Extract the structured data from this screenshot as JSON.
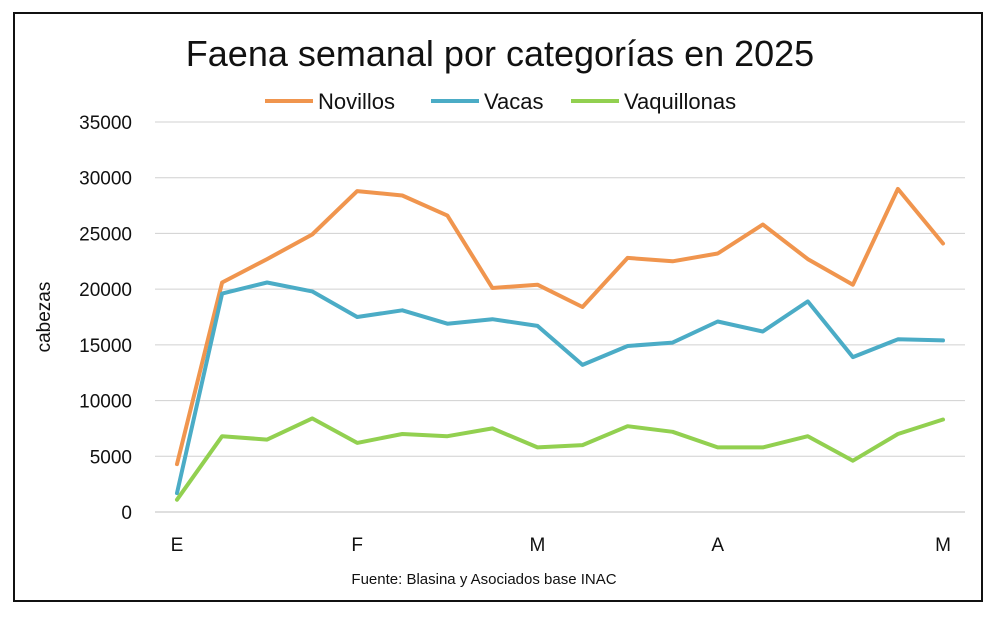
{
  "chart_data": {
    "type": "line",
    "title": "Faena semanal por categorías en 2025",
    "xlabel": "",
    "ylabel": "cabezas",
    "source": "Fuente: Blasina y Asociados base INAC",
    "ylim": [
      0,
      35000
    ],
    "yticks": [
      0,
      5000,
      10000,
      15000,
      20000,
      25000,
      30000,
      35000
    ],
    "x_tick_labels": [
      {
        "index": 0,
        "label": "E"
      },
      {
        "index": 4,
        "label": "F"
      },
      {
        "index": 8,
        "label": "M"
      },
      {
        "index": 12,
        "label": "A"
      },
      {
        "index": 17,
        "label": "M"
      }
    ],
    "points_count": 18,
    "grid": "horizontal",
    "legend_position": "top",
    "series": [
      {
        "name": "Novillos",
        "color": "#F0954E",
        "values": [
          4300,
          20600,
          22700,
          24900,
          28800,
          28400,
          26600,
          20100,
          20400,
          18400,
          22800,
          22500,
          23200,
          25800,
          22700,
          20400,
          29000,
          24100
        ]
      },
      {
        "name": "Vacas",
        "color": "#4BACC6",
        "values": [
          1700,
          19600,
          20600,
          19800,
          17500,
          18100,
          16900,
          17300,
          16700,
          13200,
          14900,
          15200,
          17100,
          16200,
          18900,
          13900,
          15500,
          15400
        ]
      },
      {
        "name": "Vaquillonas",
        "color": "#92D050",
        "values": [
          1100,
          6800,
          6500,
          8400,
          6200,
          7000,
          6800,
          7500,
          5800,
          6000,
          7700,
          7200,
          5800,
          5800,
          6800,
          4600,
          7000,
          8300
        ]
      }
    ]
  }
}
